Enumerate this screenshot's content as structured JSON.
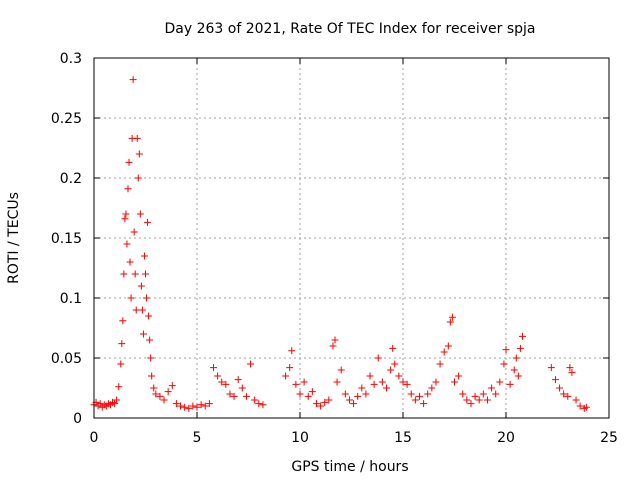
{
  "chart_data": {
    "type": "scatter",
    "title": "Day 263 of 2021, Rate Of TEC Index for receiver spja",
    "xlabel": "GPS time / hours",
    "ylabel": "ROTI / TECUs",
    "xlim": [
      0,
      25
    ],
    "ylim": [
      0,
      0.3
    ],
    "xticks": [
      0,
      5,
      10,
      15,
      20,
      25
    ],
    "xtick_labels": [
      "0",
      "5",
      "10",
      "15",
      "20",
      "25"
    ],
    "yticks": [
      0,
      0.05,
      0.1,
      0.15,
      0.2,
      0.25,
      0.3
    ],
    "ytick_labels": [
      "0",
      "0.05",
      "0.1",
      "0.15",
      "0.2",
      "0.25",
      "0.3"
    ],
    "grid": true,
    "marker": "+",
    "color": "#ff0000",
    "series": [
      {
        "points": [
          [
            0.0,
            0.011
          ],
          [
            0.1,
            0.013
          ],
          [
            0.2,
            0.01
          ],
          [
            0.3,
            0.012
          ],
          [
            0.4,
            0.009
          ],
          [
            0.5,
            0.011
          ],
          [
            0.6,
            0.01
          ],
          [
            0.7,
            0.012
          ],
          [
            0.8,
            0.011
          ],
          [
            0.9,
            0.013
          ],
          [
            1.0,
            0.012
          ],
          [
            1.1,
            0.015
          ],
          [
            1.2,
            0.026
          ],
          [
            1.3,
            0.045
          ],
          [
            1.35,
            0.062
          ],
          [
            1.4,
            0.081
          ],
          [
            1.45,
            0.12
          ],
          [
            1.5,
            0.166
          ],
          [
            1.55,
            0.17
          ],
          [
            1.6,
            0.145
          ],
          [
            1.65,
            0.191
          ],
          [
            1.7,
            0.213
          ],
          [
            1.75,
            0.13
          ],
          [
            1.8,
            0.1
          ],
          [
            1.85,
            0.233
          ],
          [
            1.9,
            0.282
          ],
          [
            1.95,
            0.155
          ],
          [
            2.0,
            0.12
          ],
          [
            2.05,
            0.09
          ],
          [
            2.1,
            0.233
          ],
          [
            2.15,
            0.2
          ],
          [
            2.2,
            0.22
          ],
          [
            2.25,
            0.17
          ],
          [
            2.3,
            0.11
          ],
          [
            2.35,
            0.09
          ],
          [
            2.4,
            0.07
          ],
          [
            2.45,
            0.135
          ],
          [
            2.5,
            0.12
          ],
          [
            2.55,
            0.1
          ],
          [
            2.6,
            0.163
          ],
          [
            2.65,
            0.085
          ],
          [
            2.7,
            0.065
          ],
          [
            2.75,
            0.05
          ],
          [
            2.8,
            0.035
          ],
          [
            2.9,
            0.025
          ],
          [
            3.0,
            0.02
          ],
          [
            3.2,
            0.018
          ],
          [
            3.4,
            0.015
          ],
          [
            3.6,
            0.022
          ],
          [
            3.8,
            0.027
          ],
          [
            4.0,
            0.012
          ],
          [
            4.2,
            0.01
          ],
          [
            4.4,
            0.009
          ],
          [
            4.6,
            0.008
          ],
          [
            4.8,
            0.01
          ],
          [
            5.0,
            0.009
          ],
          [
            5.2,
            0.011
          ],
          [
            5.4,
            0.01
          ],
          [
            5.6,
            0.012
          ],
          [
            5.8,
            0.042
          ],
          [
            6.0,
            0.035
          ],
          [
            6.2,
            0.03
          ],
          [
            6.4,
            0.028
          ],
          [
            6.6,
            0.02
          ],
          [
            6.8,
            0.018
          ],
          [
            7.0,
            0.032
          ],
          [
            7.2,
            0.025
          ],
          [
            7.4,
            0.018
          ],
          [
            7.6,
            0.045
          ],
          [
            7.8,
            0.015
          ],
          [
            8.0,
            0.012
          ],
          [
            8.2,
            0.011
          ],
          [
            9.3,
            0.035
          ],
          [
            9.5,
            0.042
          ],
          [
            9.6,
            0.056
          ],
          [
            9.8,
            0.028
          ],
          [
            10.0,
            0.02
          ],
          [
            10.2,
            0.03
          ],
          [
            10.4,
            0.018
          ],
          [
            10.6,
            0.022
          ],
          [
            10.8,
            0.012
          ],
          [
            11.0,
            0.01
          ],
          [
            11.2,
            0.013
          ],
          [
            11.4,
            0.015
          ],
          [
            11.6,
            0.06
          ],
          [
            11.7,
            0.065
          ],
          [
            11.8,
            0.03
          ],
          [
            12.0,
            0.04
          ],
          [
            12.2,
            0.02
          ],
          [
            12.4,
            0.015
          ],
          [
            12.6,
            0.012
          ],
          [
            12.8,
            0.018
          ],
          [
            13.0,
            0.025
          ],
          [
            13.2,
            0.02
          ],
          [
            13.4,
            0.035
          ],
          [
            13.6,
            0.028
          ],
          [
            13.8,
            0.05
          ],
          [
            14.0,
            0.03
          ],
          [
            14.2,
            0.025
          ],
          [
            14.4,
            0.04
          ],
          [
            14.5,
            0.058
          ],
          [
            14.6,
            0.045
          ],
          [
            14.8,
            0.035
          ],
          [
            15.0,
            0.03
          ],
          [
            15.2,
            0.028
          ],
          [
            15.4,
            0.02
          ],
          [
            15.6,
            0.015
          ],
          [
            15.8,
            0.018
          ],
          [
            16.0,
            0.012
          ],
          [
            16.2,
            0.02
          ],
          [
            16.4,
            0.025
          ],
          [
            16.6,
            0.03
          ],
          [
            16.8,
            0.045
          ],
          [
            17.0,
            0.055
          ],
          [
            17.2,
            0.06
          ],
          [
            17.3,
            0.08
          ],
          [
            17.4,
            0.084
          ],
          [
            17.5,
            0.03
          ],
          [
            17.7,
            0.035
          ],
          [
            17.9,
            0.02
          ],
          [
            18.1,
            0.015
          ],
          [
            18.3,
            0.012
          ],
          [
            18.5,
            0.018
          ],
          [
            18.7,
            0.015
          ],
          [
            18.9,
            0.02
          ],
          [
            19.1,
            0.015
          ],
          [
            19.3,
            0.025
          ],
          [
            19.5,
            0.02
          ],
          [
            19.7,
            0.03
          ],
          [
            19.9,
            0.045
          ],
          [
            20.0,
            0.057
          ],
          [
            20.2,
            0.028
          ],
          [
            20.4,
            0.04
          ],
          [
            20.5,
            0.05
          ],
          [
            20.6,
            0.035
          ],
          [
            20.7,
            0.058
          ],
          [
            20.8,
            0.068
          ],
          [
            22.2,
            0.042
          ],
          [
            22.4,
            0.032
          ],
          [
            22.6,
            0.025
          ],
          [
            22.8,
            0.02
          ],
          [
            23.0,
            0.018
          ],
          [
            23.1,
            0.042
          ],
          [
            23.2,
            0.038
          ],
          [
            23.4,
            0.015
          ],
          [
            23.6,
            0.01
          ],
          [
            23.8,
            0.008
          ],
          [
            23.9,
            0.009
          ]
        ]
      }
    ]
  }
}
